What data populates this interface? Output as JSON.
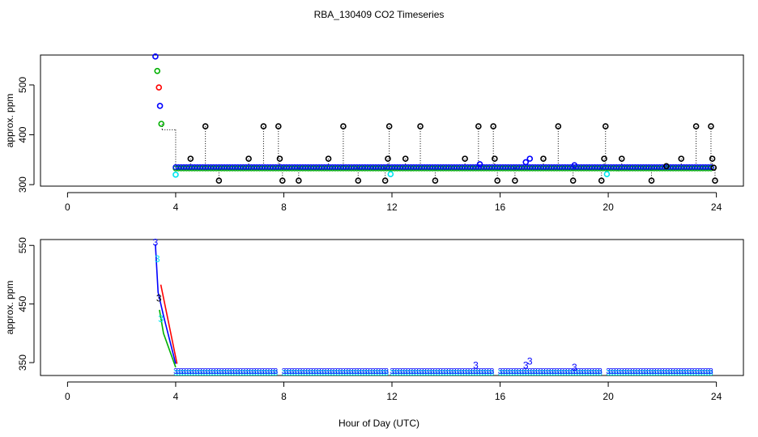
{
  "title": "RBA_130409  CO2 Timeseries",
  "xlabel": "Hour of Day (UTC)",
  "colors": {
    "black": "#000000",
    "blue": "#0000ff",
    "green": "#00b000",
    "red": "#ff0000",
    "cyan": "#00e5ee"
  },
  "chart_data": [
    {
      "type": "scatter",
      "ylabel": "approx. ppm",
      "xlim": [
        -1,
        25
      ],
      "ylim": [
        297,
        560
      ],
      "xticks": [
        0,
        4,
        8,
        12,
        16,
        20,
        24
      ],
      "yticks": [
        300,
        400,
        500
      ],
      "points": [
        {
          "x": 3.25,
          "y": 557,
          "c": "blue"
        },
        {
          "x": 3.32,
          "y": 528,
          "c": "green"
        },
        {
          "x": 3.38,
          "y": 495,
          "c": "red"
        },
        {
          "x": 3.42,
          "y": 458,
          "c": "blue"
        },
        {
          "x": 3.47,
          "y": 422,
          "c": "green"
        },
        {
          "x": 4.0,
          "y": 320,
          "c": "cyan"
        },
        {
          "x": 11.95,
          "y": 321,
          "c": "cyan"
        },
        {
          "x": 19.95,
          "y": 321,
          "c": "cyan"
        },
        {
          "x": 4.55,
          "y": 352,
          "c": "black"
        },
        {
          "x": 5.1,
          "y": 417,
          "c": "black"
        },
        {
          "x": 5.6,
          "y": 308,
          "c": "black"
        },
        {
          "x": 6.7,
          "y": 352,
          "c": "black"
        },
        {
          "x": 7.25,
          "y": 417,
          "c": "black"
        },
        {
          "x": 7.8,
          "y": 417,
          "c": "black"
        },
        {
          "x": 7.85,
          "y": 352,
          "c": "black"
        },
        {
          "x": 7.95,
          "y": 308,
          "c": "black"
        },
        {
          "x": 8.55,
          "y": 308,
          "c": "black"
        },
        {
          "x": 9.65,
          "y": 352,
          "c": "black"
        },
        {
          "x": 10.2,
          "y": 417,
          "c": "black"
        },
        {
          "x": 10.75,
          "y": 308,
          "c": "black"
        },
        {
          "x": 11.75,
          "y": 308,
          "c": "black"
        },
        {
          "x": 11.85,
          "y": 352,
          "c": "black"
        },
        {
          "x": 11.9,
          "y": 417,
          "c": "black"
        },
        {
          "x": 12.5,
          "y": 352,
          "c": "black"
        },
        {
          "x": 13.05,
          "y": 417,
          "c": "black"
        },
        {
          "x": 13.6,
          "y": 308,
          "c": "black"
        },
        {
          "x": 14.7,
          "y": 352,
          "c": "black"
        },
        {
          "x": 15.2,
          "y": 417,
          "c": "black"
        },
        {
          "x": 15.25,
          "y": 341,
          "c": "blue"
        },
        {
          "x": 15.75,
          "y": 417,
          "c": "black"
        },
        {
          "x": 15.8,
          "y": 352,
          "c": "black"
        },
        {
          "x": 15.9,
          "y": 308,
          "c": "black"
        },
        {
          "x": 16.55,
          "y": 308,
          "c": "black"
        },
        {
          "x": 16.95,
          "y": 345,
          "c": "blue"
        },
        {
          "x": 17.1,
          "y": 352,
          "c": "blue"
        },
        {
          "x": 17.6,
          "y": 352,
          "c": "black"
        },
        {
          "x": 18.15,
          "y": 417,
          "c": "black"
        },
        {
          "x": 18.7,
          "y": 308,
          "c": "black"
        },
        {
          "x": 18.75,
          "y": 339,
          "c": "blue"
        },
        {
          "x": 19.75,
          "y": 308,
          "c": "black"
        },
        {
          "x": 19.85,
          "y": 352,
          "c": "black"
        },
        {
          "x": 19.9,
          "y": 417,
          "c": "black"
        },
        {
          "x": 20.5,
          "y": 352,
          "c": "black"
        },
        {
          "x": 21.6,
          "y": 308,
          "c": "black"
        },
        {
          "x": 22.15,
          "y": 337,
          "c": "black"
        },
        {
          "x": 22.7,
          "y": 352,
          "c": "black"
        },
        {
          "x": 23.25,
          "y": 417,
          "c": "black"
        },
        {
          "x": 23.8,
          "y": 417,
          "c": "black"
        },
        {
          "x": 23.85,
          "y": 352,
          "c": "black"
        },
        {
          "x": 23.9,
          "y": 334,
          "c": "black"
        },
        {
          "x": 23.95,
          "y": 308,
          "c": "black"
        }
      ],
      "baseline": {
        "x_start": 4.0,
        "x_end": 23.8,
        "y": 335,
        "step": 0.1,
        "c": "blue"
      }
    },
    {
      "type": "scatter",
      "ylabel": "approx. ppm",
      "xlim": [
        -1,
        25
      ],
      "ylim": [
        328,
        560
      ],
      "xticks": [
        0,
        4,
        8,
        12,
        16,
        20,
        24
      ],
      "yticks": [
        350,
        450,
        550
      ],
      "point_symbol": "3",
      "points": [
        {
          "x": 3.25,
          "y": 555,
          "c": "blue"
        },
        {
          "x": 3.32,
          "y": 527,
          "c": "cyan"
        },
        {
          "x": 3.38,
          "y": 460,
          "c": "black"
        },
        {
          "x": 3.45,
          "y": 425,
          "c": "cyan"
        },
        {
          "x": 15.1,
          "y": 345,
          "c": "blue"
        },
        {
          "x": 16.95,
          "y": 345,
          "c": "blue"
        },
        {
          "x": 17.1,
          "y": 352,
          "c": "blue"
        },
        {
          "x": 18.75,
          "y": 342,
          "c": "blue"
        }
      ],
      "lines": [
        {
          "c": "blue",
          "x": [
            3.25,
            3.35,
            3.55,
            4.0
          ],
          "y": [
            552,
            470,
            430,
            348
          ]
        },
        {
          "c": "red",
          "x": [
            3.45,
            4.05
          ],
          "y": [
            483,
            348
          ]
        },
        {
          "c": "green",
          "x": [
            3.4,
            3.55,
            4.0
          ],
          "y": [
            440,
            400,
            342
          ]
        }
      ],
      "segments": [
        [
          4.0,
          7.7
        ],
        [
          8.0,
          11.8
        ],
        [
          12.0,
          15.7
        ],
        [
          16.0,
          19.7
        ],
        [
          20.0,
          23.8
        ]
      ],
      "baseline": {
        "y": 336,
        "step": 0.1,
        "c": "blue"
      }
    }
  ]
}
